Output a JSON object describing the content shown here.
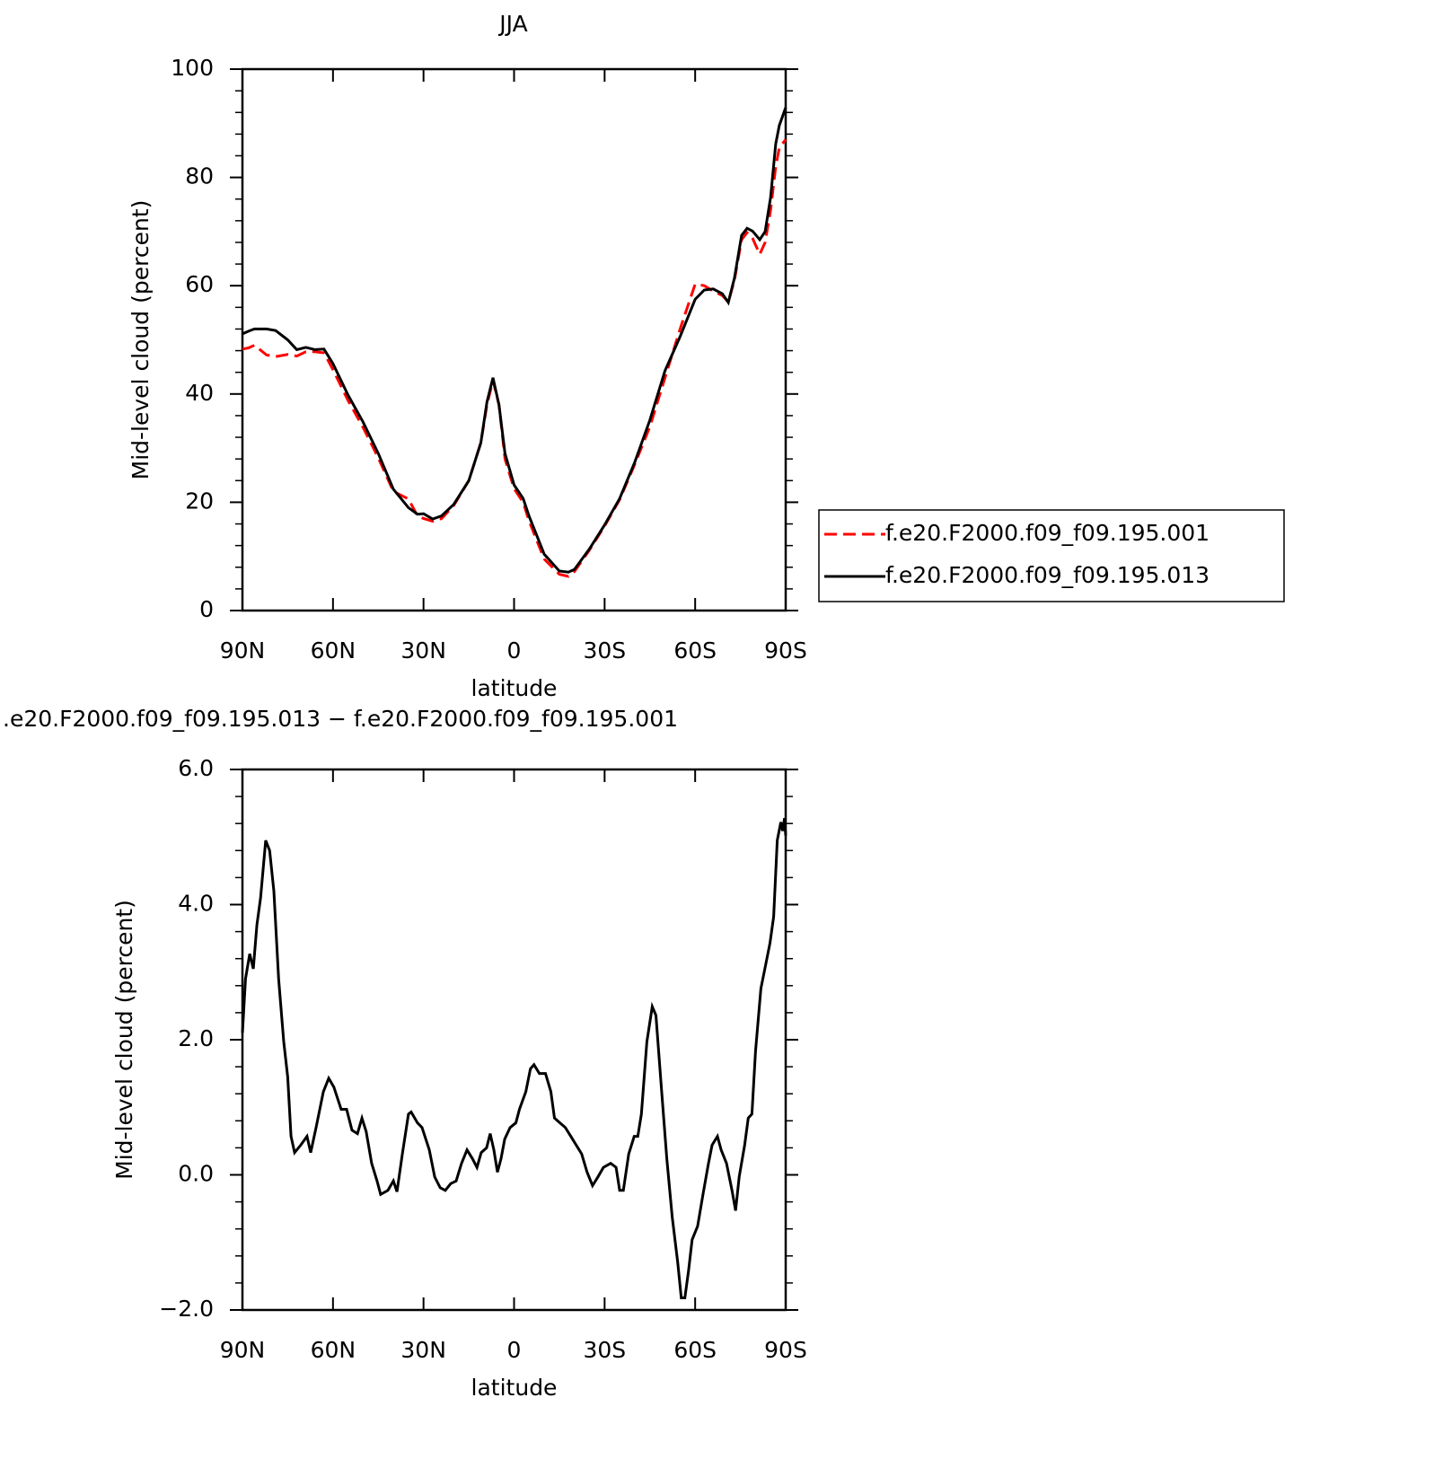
{
  "chart_data": [
    {
      "type": "line",
      "title": "JJA",
      "xlabel": "latitude",
      "ylabel": "Mid-level cloud (percent)",
      "x": [
        90,
        88,
        86,
        82,
        79,
        75,
        72,
        69,
        66,
        63,
        60,
        55,
        50,
        45,
        40,
        35,
        32,
        30,
        27,
        24,
        20,
        15,
        11,
        9,
        7,
        5,
        3,
        0,
        -3,
        -5,
        -10,
        -15,
        -18,
        -20,
        -25,
        -30,
        -35,
        -40,
        -45,
        -50,
        -55,
        -60,
        -63,
        -66,
        -69,
        -71,
        -73,
        -75.4,
        -77.2,
        -79,
        -81.4,
        -83.2,
        -85,
        -86.7,
        -87.9,
        -90
      ],
      "series": [
        {
          "name": "f.e20.F2000.f09_f09.195.001",
          "color": "#ff0000",
          "linestyle": "dashed",
          "values": [
            48.3,
            48.5,
            49,
            47.2,
            46.9,
            47.3,
            47,
            47.8,
            47.8,
            47.6,
            44.5,
            38.8,
            33.8,
            28.2,
            22,
            20.6,
            17.5,
            17,
            16.5,
            17,
            19.4,
            24,
            31,
            38,
            42.5,
            38,
            28,
            22.5,
            20,
            16.5,
            9.5,
            6.7,
            6.3,
            7.2,
            11.2,
            15.6,
            20.5,
            27,
            34,
            43,
            52,
            60.3,
            60,
            59,
            58.2,
            57,
            61,
            68.5,
            69.8,
            68.8,
            65.8,
            68,
            74,
            82,
            85.5,
            87
          ]
        },
        {
          "name": "f.e20.F2000.f09_f09.195.013",
          "color": "#000000",
          "linestyle": "solid",
          "values": [
            51.1,
            51.6,
            52,
            52,
            51.7,
            50,
            48.2,
            48.6,
            48.2,
            48.3,
            45.6,
            39.8,
            34.8,
            29,
            22.4,
            19,
            17.8,
            17.9,
            16.9,
            17.5,
            19.6,
            24,
            31,
            38.5,
            43,
            38,
            29,
            23.2,
            20.7,
            17.4,
            10.4,
            7.3,
            7.1,
            7.6,
            11.4,
            15.8,
            20.7,
            27.4,
            35.2,
            44.3,
            50.6,
            57.5,
            59.2,
            59.4,
            58.5,
            56.9,
            61.4,
            69.3,
            70.6,
            70.1,
            68.5,
            70,
            76.3,
            86.2,
            89.6,
            92.9
          ]
        }
      ],
      "xlim": [
        90,
        -90
      ],
      "xticks": [
        {
          "value": 90,
          "label": "90N"
        },
        {
          "value": 60,
          "label": "60N"
        },
        {
          "value": 30,
          "label": "30N"
        },
        0,
        {
          "value": -30,
          "label": "30S"
        },
        {
          "value": -60,
          "label": "60S"
        },
        {
          "value": -90,
          "label": "90S"
        }
      ],
      "ylim": [
        0,
        100
      ],
      "yticks": [
        0,
        20,
        40,
        60,
        80,
        100
      ],
      "legend": "right"
    },
    {
      "type": "line",
      "title": ".e20.F2000.f09_f09.195.013 − f.e20.F2000.f09_f09.195.001",
      "xlabel": "latitude",
      "ylabel": "Mid-level cloud (percent)",
      "x": [
        90,
        89,
        87.6,
        86.4,
        85.2,
        84,
        82.3,
        81,
        79.6,
        78,
        76.3,
        75,
        73.9,
        72.7,
        70.7,
        68.6,
        67.4,
        65.6,
        63.2,
        61.4,
        59.7,
        57.3,
        55.5,
        53.7,
        51.9,
        50.4,
        49,
        47.2,
        45.4,
        44.2,
        41.8,
        40,
        38.8,
        37,
        35,
        34.1,
        32,
        30.5,
        28.1,
        26.3,
        24.5,
        22.8,
        21,
        19.2,
        17.4,
        15.6,
        13.8,
        12.3,
        10.9,
        9.1,
        7.9,
        6.7,
        5.5,
        4.3,
        3.1,
        1.3,
        -0.6,
        -1.8,
        -3.9,
        -5.4,
        -6.6,
        -8.4,
        -10.4,
        -12.2,
        -13.4,
        -15.2,
        -17,
        -18.8,
        -20.6,
        -22.4,
        -24.2,
        -26,
        -27.8,
        -29.6,
        -32,
        -33.8,
        -35,
        -36.2,
        -38,
        -39.8,
        -41,
        -42.2,
        -44,
        -45.8,
        -47,
        -48.8,
        -50.6,
        -52.4,
        -54.2,
        -55.4,
        -56.6,
        -57.8,
        -59,
        -60.8,
        -62.6,
        -64.4,
        -65.6,
        -67.4,
        -68.6,
        -70.4,
        -72.2,
        -73.4,
        -74.6,
        -76.4,
        -77.6,
        -78.8,
        -80,
        -81.8,
        -83,
        -84.8,
        -86,
        -87.2,
        -88.4,
        -89,
        -89.6,
        -90
      ],
      "values": [
        2.1,
        2.9,
        3.27,
        3.05,
        3.7,
        4.1,
        4.95,
        4.8,
        4.2,
        2.9,
        1.97,
        1.45,
        0.57,
        0.33,
        0.44,
        0.57,
        0.33,
        0.7,
        1.23,
        1.43,
        1.3,
        0.97,
        0.97,
        0.66,
        0.61,
        0.84,
        0.64,
        0.17,
        -0.09,
        -0.29,
        -0.23,
        -0.09,
        -0.25,
        0.31,
        0.9,
        0.93,
        0.77,
        0.7,
        0.37,
        -0.03,
        -0.19,
        -0.23,
        -0.13,
        -0.09,
        0.17,
        0.37,
        0.24,
        0.11,
        0.33,
        0.4,
        0.61,
        0.37,
        0.04,
        0.24,
        0.53,
        0.7,
        0.77,
        0.97,
        1.23,
        1.57,
        1.63,
        1.5,
        1.5,
        1.23,
        0.84,
        0.77,
        0.7,
        0.57,
        0.44,
        0.31,
        0.04,
        -0.16,
        -0.03,
        0.11,
        0.17,
        0.11,
        -0.23,
        -0.23,
        0.31,
        0.57,
        0.57,
        0.9,
        1.97,
        2.49,
        2.36,
        1.3,
        0.24,
        -0.62,
        -1.29,
        -1.82,
        -1.82,
        -1.42,
        -0.96,
        -0.76,
        -0.29,
        0.17,
        0.44,
        0.57,
        0.37,
        0.17,
        -0.23,
        -0.53,
        -0.03,
        0.44,
        0.84,
        0.9,
        1.83,
        2.76,
        3.03,
        3.43,
        3.82,
        4.95,
        5.22,
        5.09,
        5.28,
        5.02
      ],
      "color": "#000000",
      "xlim": [
        90,
        -90
      ],
      "xticks": [
        {
          "value": 90,
          "label": "90N"
        },
        {
          "value": 60,
          "label": "60N"
        },
        {
          "value": 30,
          "label": "30N"
        },
        0,
        {
          "value": -30,
          "label": "30S"
        },
        {
          "value": -60,
          "label": "60S"
        },
        {
          "value": -90,
          "label": "90S"
        }
      ],
      "ylim": [
        -2,
        6
      ],
      "yticks": [
        {
          "value": -2,
          "label": "−2.0"
        },
        {
          "value": 0,
          "label": "0.0"
        },
        {
          "value": 2,
          "label": "2.0"
        },
        {
          "value": 4,
          "label": "4.0"
        },
        {
          "value": 6,
          "label": "6.0"
        }
      ]
    }
  ]
}
